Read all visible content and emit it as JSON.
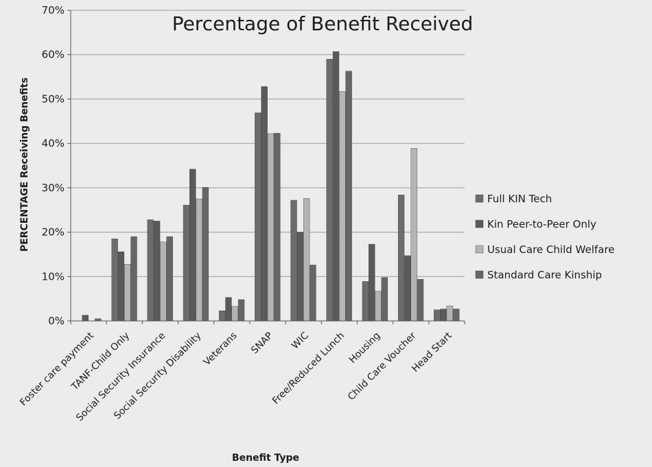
{
  "chart_data": {
    "type": "bar",
    "title": "Percentage of Benefit Received",
    "xlabel": "Benefit Type",
    "ylabel": "PERCENTAGE Receiving Benefits",
    "ylim": [
      0,
      70
    ],
    "y_ticks": [
      "0%",
      "10%",
      "20%",
      "30%",
      "40%",
      "50%",
      "60%",
      "70%"
    ],
    "grid": true,
    "legend_position": "right",
    "categories": [
      "Foster care payment",
      "TANF-Child Only",
      "Social Security Insurance",
      "Social Security Disability",
      "Veterans",
      "SNAP",
      "WIC",
      "Free/Reduced Lunch",
      "Housing",
      "Child Care Voucher",
      "Head Start"
    ],
    "series": [
      {
        "name": "Full KIN Tech",
        "color": "#6c6c6c",
        "values": [
          0,
          18.5,
          22.8,
          26.1,
          2.3,
          46.9,
          27.2,
          59.0,
          8.9,
          28.4,
          2.5
        ]
      },
      {
        "name": "Kin Peer-to-Peer Only",
        "color": "#5a5a5a",
        "values": [
          1.3,
          15.6,
          22.5,
          34.2,
          5.3,
          52.8,
          20.0,
          60.7,
          17.3,
          14.7,
          2.7
        ]
      },
      {
        "name": "Usual Care Child Welfare",
        "color": "#b4b4b4",
        "values": [
          0,
          12.8,
          17.8,
          27.5,
          3.3,
          42.2,
          27.6,
          51.7,
          6.7,
          38.9,
          3.4
        ]
      },
      {
        "name": "Standard Care Kinship",
        "color": "#666666",
        "values": [
          0.5,
          19.0,
          19.0,
          30.1,
          4.8,
          42.3,
          12.6,
          56.3,
          9.8,
          9.4,
          2.7
        ]
      }
    ]
  }
}
